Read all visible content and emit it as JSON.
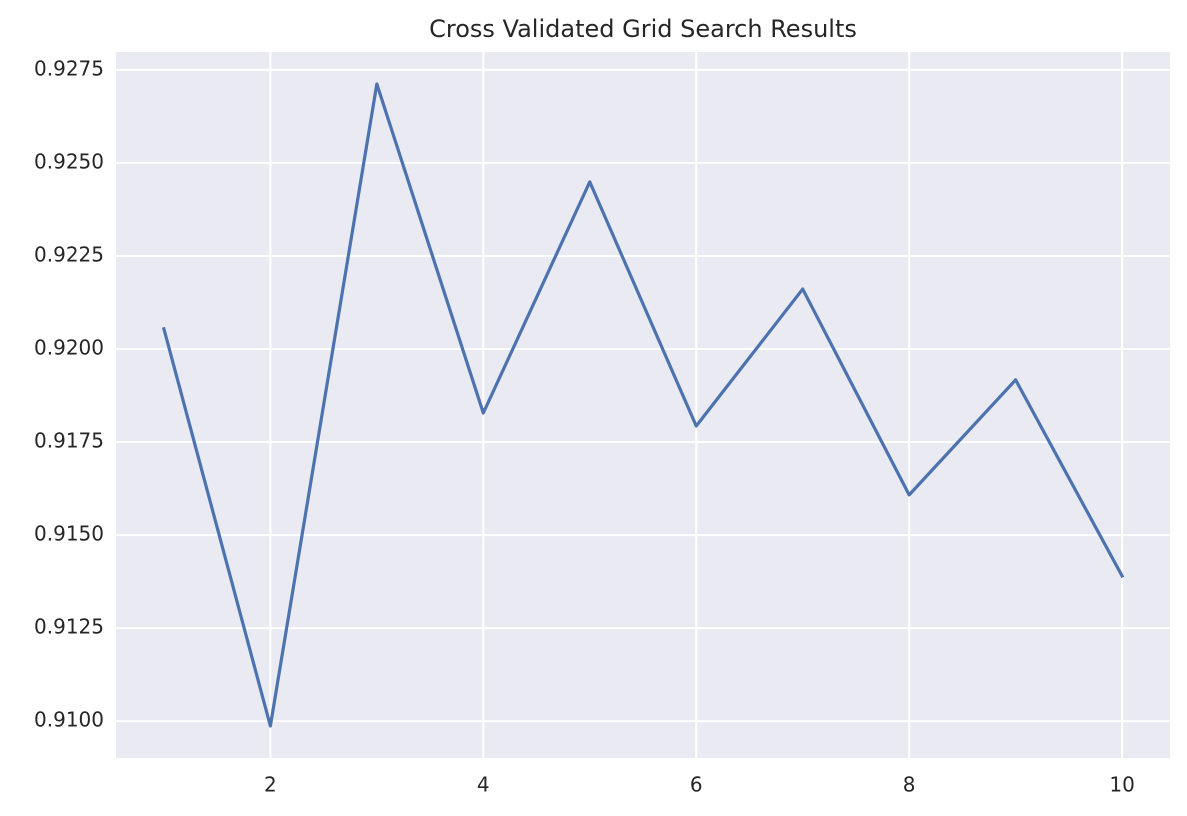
{
  "chart_data": {
    "type": "line",
    "title": "Cross Validated Grid Search Results",
    "x": [
      1,
      2,
      3,
      4,
      5,
      6,
      7,
      8,
      9,
      10
    ],
    "series": [
      {
        "color": "#4c72b0",
        "values": [
          0.92054,
          0.90987,
          0.92712,
          0.91828,
          0.92449,
          0.91793,
          0.92161,
          0.91608,
          0.91917,
          0.9139
        ]
      }
    ],
    "xlim": [
      0.55,
      10.45
    ],
    "xticks": [
      2,
      4,
      6,
      8,
      10
    ],
    "ylim": [
      0.90901,
      0.92798
    ],
    "yticks": [
      {
        "value": 0.91,
        "label": "0.9100"
      },
      {
        "value": 0.9125,
        "label": "0.9125"
      },
      {
        "value": 0.915,
        "label": "0.9150"
      },
      {
        "value": 0.9175,
        "label": "0.9175"
      },
      {
        "value": 0.92,
        "label": "0.9200"
      },
      {
        "value": 0.9225,
        "label": "0.9225"
      },
      {
        "value": 0.925,
        "label": "0.9250"
      },
      {
        "value": 0.9275,
        "label": "0.9275"
      }
    ],
    "grid": true,
    "background": "#eaeaf2"
  }
}
